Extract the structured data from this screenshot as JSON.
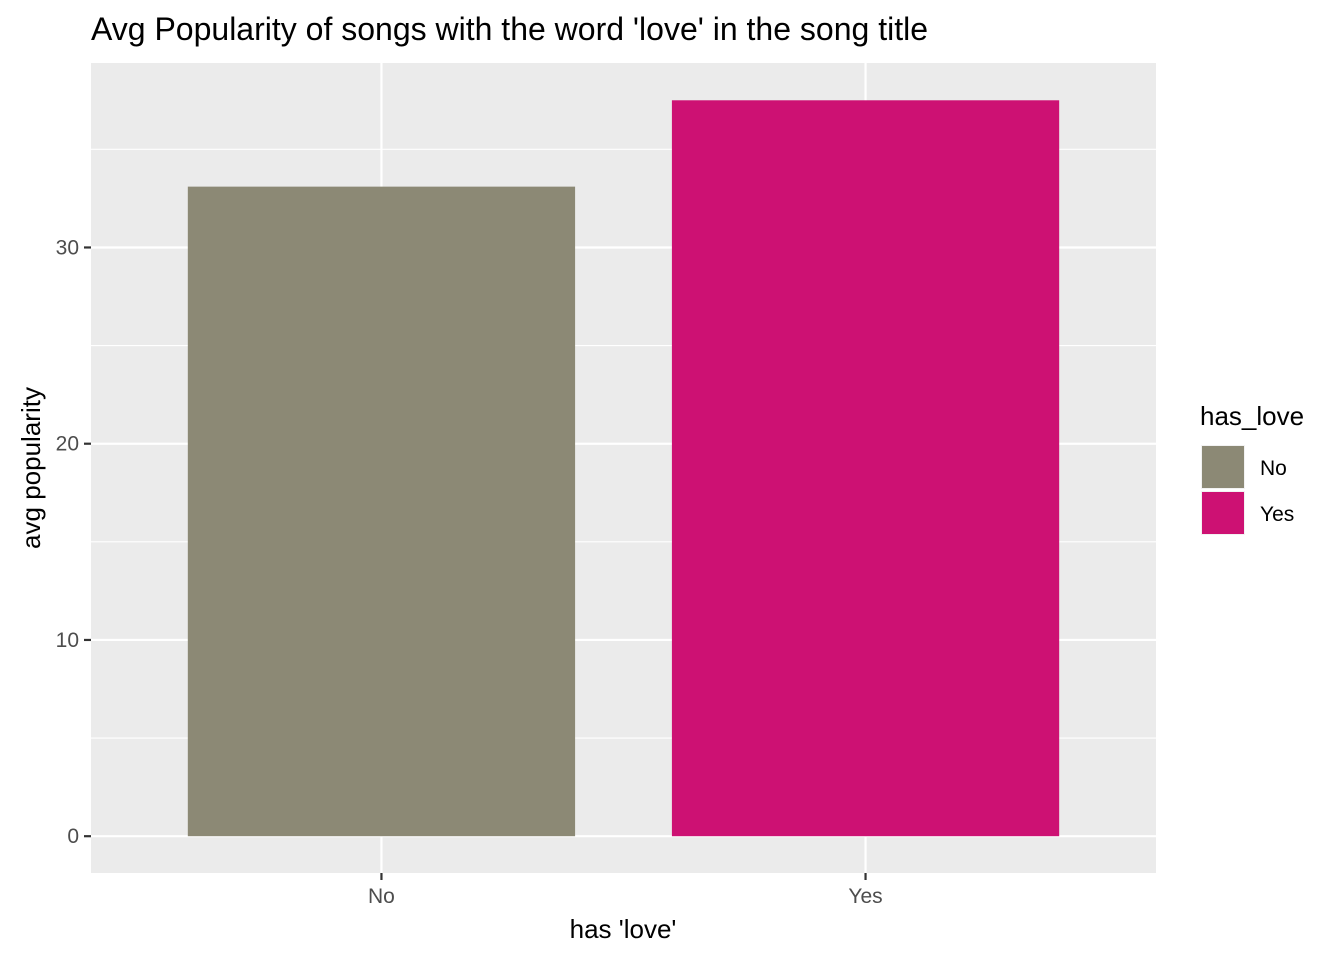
{
  "chart_data": {
    "type": "bar",
    "title": "Avg Popularity of songs with the word 'love' in the song title",
    "xlabel": "has 'love'",
    "ylabel": "avg popularity",
    "categories": [
      "No",
      "Yes"
    ],
    "values": [
      33.1,
      37.5
    ],
    "colors": [
      "#8c8975",
      "#cd1173"
    ],
    "ylim": [
      -1.875,
      39.4
    ],
    "yticks": [
      0,
      10,
      20,
      30
    ],
    "ytick_labels": [
      "0",
      "10",
      "20",
      "30"
    ],
    "grid": true,
    "panel_background": "#ebebeb",
    "legend": {
      "title": "has_love",
      "position": "right",
      "items": [
        {
          "label": "No",
          "color": "#8c8975"
        },
        {
          "label": "Yes",
          "color": "#cd1173"
        }
      ]
    }
  }
}
